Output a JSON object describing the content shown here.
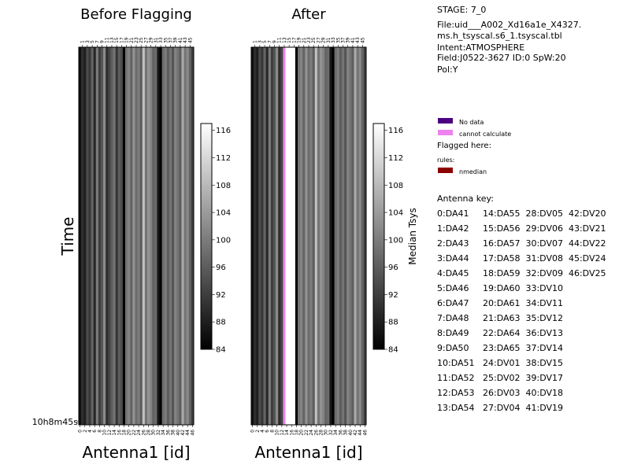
{
  "info": {
    "stage": "STAGE: 7_0",
    "file_line1": "File:uid___A002_Xd16a1e_X4327.",
    "file_line2": "ms.h_tsyscal.s6_1.tsyscal.tbl",
    "intent": "Intent:ATMOSPHERE",
    "field": "Field:J0522-3627 ID:0 SpW:20",
    "pol": "Pol:Y"
  },
  "legend": {
    "no_data": {
      "label": "No data",
      "color": "#4b0082"
    },
    "cannot_calculate": {
      "label": "cannot calculate",
      "color": "#ee82ee"
    },
    "flagged_here": "Flagged here:",
    "rules": "rules:",
    "nmedian": {
      "label": "nmedian",
      "color": "#8b0000"
    }
  },
  "antenna_key": {
    "title": "Antenna key:",
    "rows": [
      "0:DA41     14:DA55  28:DV05  42:DV20",
      "1:DA42     15:DA56  29:DV06  43:DV21",
      "2:DA43     16:DA57  30:DV07  44:DV22",
      "3:DA44     17:DA58  31:DV08  45:DV24",
      "4:DA45     18:DA59  32:DV09  46:DV25",
      "5:DA46     19:DA60  33:DV10",
      "6:DA47     20:DA61  34:DV11",
      "7:DA48     21:DA63  35:DV12",
      "8:DA49     22:DA64  36:DV13",
      "9:DA50     23:DA65  37:DV14",
      "10:DA51   24:DV01  38:DV15",
      "11:DA52   25:DV02  39:DV17",
      "12:DA53   26:DV03  40:DV18",
      "13:DA54   27:DV04  41:DV19"
    ]
  },
  "chart_data": [
    {
      "type": "heatmap",
      "title": "Before Flagging",
      "xlabel": "Antenna1 [id]",
      "ylabel": "Time",
      "y_tick_label": "10h8m45s",
      "x_tick_bottom": [
        "0",
        "2",
        "4",
        "6",
        "8",
        "10",
        "12",
        "14",
        "16",
        "18",
        "20",
        "22",
        "24",
        "26",
        "28",
        "30",
        "32",
        "34",
        "36",
        "38",
        "40",
        "42",
        "44",
        "46"
      ],
      "x_tick_top": [
        "1",
        "3",
        "5",
        "7",
        "9",
        "11",
        "13",
        "15",
        "17",
        "19",
        "21",
        "23",
        "25",
        "27",
        "29",
        "31",
        "33",
        "35",
        "37",
        "39",
        "41",
        "43",
        "45"
      ],
      "antennas": [
        0,
        1,
        2,
        3,
        4,
        5,
        6,
        7,
        8,
        9,
        10,
        11,
        12,
        13,
        14,
        15,
        16,
        17,
        18,
        19,
        20,
        21,
        22,
        23,
        24,
        25,
        26,
        27,
        28,
        29,
        30,
        31,
        32,
        33,
        34,
        35,
        36,
        37,
        38,
        39,
        40,
        41,
        42,
        43,
        44,
        45,
        46
      ],
      "values": [
        86,
        90,
        88,
        94,
        91,
        97,
        89,
        100,
        92,
        95,
        102,
        90,
        93,
        96,
        99,
        91,
        96,
        94,
        84,
        99,
        101,
        97,
        103,
        98,
        100,
        96,
        109,
        99,
        103,
        101,
        97,
        98,
        87,
        84,
        98,
        100,
        96,
        99,
        95,
        101,
        99,
        96,
        106,
        99,
        102,
        97,
        92
      ],
      "colorbar": {
        "label": "",
        "ticks": [
          "84",
          "88",
          "92",
          "96",
          "100",
          "104",
          "108",
          "112",
          "116"
        ],
        "range": [
          84,
          117
        ]
      }
    },
    {
      "type": "heatmap",
      "title": "After",
      "xlabel": "Antenna1 [id]",
      "ylabel": "",
      "x_tick_bottom": [
        "0",
        "2",
        "4",
        "6",
        "8",
        "10",
        "12",
        "14",
        "16",
        "18",
        "20",
        "22",
        "24",
        "26",
        "28",
        "30",
        "32",
        "34",
        "36",
        "38",
        "40",
        "42",
        "44",
        "46"
      ],
      "x_tick_top": [
        "1",
        "3",
        "5",
        "7",
        "9",
        "11",
        "13",
        "15",
        "17",
        "19",
        "21",
        "23",
        "25",
        "27",
        "29",
        "31",
        "33",
        "35",
        "37",
        "39",
        "41",
        "43",
        "45"
      ],
      "antennas": [
        0,
        1,
        2,
        3,
        4,
        5,
        6,
        7,
        8,
        9,
        10,
        11,
        12,
        13,
        14,
        15,
        16,
        17,
        18,
        19,
        20,
        21,
        22,
        23,
        24,
        25,
        26,
        27,
        28,
        29,
        30,
        31,
        32,
        33,
        34,
        35,
        36,
        37,
        38,
        39,
        40,
        41,
        42,
        43,
        44,
        45,
        46
      ],
      "values": [
        86,
        90,
        88,
        94,
        91,
        97,
        89,
        100,
        92,
        95,
        102,
        90,
        93,
        null,
        null,
        117,
        117,
        117,
        84,
        99,
        101,
        97,
        103,
        98,
        100,
        96,
        109,
        99,
        103,
        101,
        97,
        98,
        87,
        84,
        98,
        100,
        96,
        99,
        95,
        101,
        99,
        96,
        106,
        99,
        102,
        97,
        92
      ],
      "cannot_calculate_antennas": [
        13
      ],
      "colorbar": {
        "label": "Median Tsys",
        "ticks": [
          "84",
          "88",
          "92",
          "96",
          "100",
          "104",
          "108",
          "112",
          "116"
        ],
        "range": [
          84,
          117
        ]
      }
    }
  ]
}
